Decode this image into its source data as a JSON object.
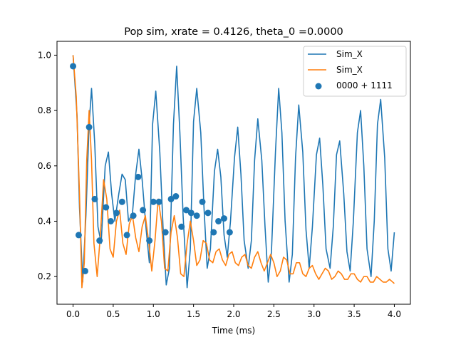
{
  "chart_data": {
    "type": "line",
    "title": "Pop sim, xrate = 0.4126, theta_0 =0.0000",
    "xlabel": "Time (ms)",
    "ylabel": "",
    "xlim": [
      -0.2,
      4.2
    ],
    "ylim": [
      0.1,
      1.05
    ],
    "xticks": [
      0.0,
      0.5,
      1.0,
      1.5,
      2.0,
      2.5,
      3.0,
      3.5,
      4.0
    ],
    "xtick_labels": [
      "0.0",
      "0.5",
      "1.0",
      "1.5",
      "2.0",
      "2.5",
      "3.0",
      "3.5",
      "4.0"
    ],
    "yticks": [
      0.2,
      0.4,
      0.6,
      0.8,
      1.0
    ],
    "ytick_labels": [
      "0.2",
      "0.4",
      "0.6",
      "0.8",
      "1.0"
    ],
    "grid": false,
    "legend_position": "top-right",
    "series": [
      {
        "name": "Sim_X",
        "type": "line",
        "color": "#1f77b4",
        "x": [
          0.0,
          0.05,
          0.08,
          0.12,
          0.16,
          0.2,
          0.23,
          0.27,
          0.31,
          0.35,
          0.4,
          0.44,
          0.48,
          0.52,
          0.57,
          0.61,
          0.65,
          0.69,
          0.74,
          0.78,
          0.82,
          0.86,
          0.91,
          0.95,
          0.99,
          1.03,
          1.08,
          1.12,
          1.16,
          1.2,
          1.25,
          1.29,
          1.33,
          1.37,
          1.42,
          1.46,
          1.5,
          1.54,
          1.59,
          1.63,
          1.67,
          1.71,
          1.76,
          1.8,
          1.84,
          1.88,
          1.92,
          1.96,
          2.01,
          2.05,
          2.09,
          2.13,
          2.18,
          2.22,
          2.26,
          2.3,
          2.35,
          2.39,
          2.43,
          2.47,
          2.52,
          2.56,
          2.6,
          2.64,
          2.69,
          2.73,
          2.77,
          2.81,
          2.86,
          2.9,
          2.94,
          2.98,
          3.03,
          3.07,
          3.11,
          3.15,
          3.2,
          3.24,
          3.28,
          3.32,
          3.37,
          3.41,
          3.45,
          3.49,
          3.54,
          3.58,
          3.62,
          3.66,
          3.71,
          3.75,
          3.79,
          3.83,
          3.88,
          3.92,
          3.96,
          4.0
        ],
        "y": [
          1.0,
          0.78,
          0.45,
          0.18,
          0.42,
          0.75,
          0.88,
          0.68,
          0.38,
          0.32,
          0.6,
          0.65,
          0.5,
          0.4,
          0.5,
          0.57,
          0.55,
          0.4,
          0.43,
          0.57,
          0.66,
          0.55,
          0.37,
          0.25,
          0.75,
          0.87,
          0.65,
          0.38,
          0.17,
          0.23,
          0.75,
          0.96,
          0.72,
          0.42,
          0.16,
          0.3,
          0.76,
          0.88,
          0.72,
          0.45,
          0.23,
          0.3,
          0.58,
          0.66,
          0.56,
          0.35,
          0.27,
          0.4,
          0.63,
          0.74,
          0.57,
          0.33,
          0.23,
          0.33,
          0.62,
          0.77,
          0.62,
          0.38,
          0.18,
          0.29,
          0.65,
          0.88,
          0.72,
          0.4,
          0.18,
          0.28,
          0.63,
          0.82,
          0.65,
          0.37,
          0.23,
          0.38,
          0.64,
          0.7,
          0.53,
          0.3,
          0.23,
          0.38,
          0.64,
          0.69,
          0.5,
          0.29,
          0.22,
          0.4,
          0.72,
          0.8,
          0.6,
          0.3,
          0.2,
          0.4,
          0.75,
          0.84,
          0.63,
          0.3,
          0.22,
          0.36
        ]
      },
      {
        "name": "Sim_X",
        "type": "line",
        "color": "#ff7f0e",
        "x": [
          0.0,
          0.04,
          0.08,
          0.11,
          0.14,
          0.17,
          0.2,
          0.23,
          0.26,
          0.3,
          0.34,
          0.38,
          0.42,
          0.46,
          0.5,
          0.54,
          0.58,
          0.62,
          0.66,
          0.7,
          0.74,
          0.78,
          0.82,
          0.86,
          0.9,
          0.94,
          0.98,
          1.02,
          1.06,
          1.1,
          1.14,
          1.18,
          1.22,
          1.26,
          1.3,
          1.34,
          1.38,
          1.42,
          1.46,
          1.5,
          1.54,
          1.58,
          1.62,
          1.66,
          1.7,
          1.74,
          1.78,
          1.82,
          1.86,
          1.9,
          1.94,
          1.98,
          2.02,
          2.06,
          2.1,
          2.14,
          2.18,
          2.22,
          2.26,
          2.3,
          2.34,
          2.38,
          2.42,
          2.46,
          2.5,
          2.54,
          2.58,
          2.62,
          2.66,
          2.7,
          2.74,
          2.78,
          2.82,
          2.86,
          2.9,
          2.94,
          2.98,
          3.02,
          3.06,
          3.1,
          3.14,
          3.18,
          3.22,
          3.26,
          3.3,
          3.34,
          3.38,
          3.42,
          3.46,
          3.5,
          3.54,
          3.58,
          3.62,
          3.66,
          3.7,
          3.74,
          3.78,
          3.82,
          3.86,
          3.9,
          3.94,
          3.98,
          4.0
        ],
        "y": [
          1.0,
          0.85,
          0.5,
          0.16,
          0.25,
          0.62,
          0.8,
          0.62,
          0.32,
          0.2,
          0.35,
          0.55,
          0.48,
          0.3,
          0.27,
          0.4,
          0.44,
          0.32,
          0.28,
          0.39,
          0.42,
          0.34,
          0.29,
          0.38,
          0.42,
          0.33,
          0.22,
          0.33,
          0.48,
          0.4,
          0.23,
          0.22,
          0.36,
          0.42,
          0.34,
          0.21,
          0.2,
          0.32,
          0.4,
          0.33,
          0.24,
          0.26,
          0.33,
          0.32,
          0.26,
          0.25,
          0.29,
          0.3,
          0.26,
          0.24,
          0.28,
          0.29,
          0.25,
          0.24,
          0.27,
          0.28,
          0.24,
          0.23,
          0.27,
          0.29,
          0.25,
          0.22,
          0.25,
          0.28,
          0.25,
          0.2,
          0.22,
          0.27,
          0.26,
          0.21,
          0.21,
          0.25,
          0.25,
          0.21,
          0.2,
          0.23,
          0.24,
          0.21,
          0.19,
          0.21,
          0.23,
          0.22,
          0.19,
          0.2,
          0.22,
          0.21,
          0.19,
          0.19,
          0.21,
          0.21,
          0.19,
          0.18,
          0.2,
          0.2,
          0.18,
          0.18,
          0.2,
          0.19,
          0.18,
          0.18,
          0.19,
          0.18,
          0.175
        ]
      },
      {
        "name": "0000 + 1111",
        "type": "scatter",
        "color": "#1f77b4",
        "x": [
          0.0,
          0.07,
          0.15,
          0.2,
          0.27,
          0.33,
          0.41,
          0.47,
          0.54,
          0.61,
          0.67,
          0.75,
          0.81,
          0.87,
          0.95,
          1.0,
          1.07,
          1.15,
          1.22,
          1.28,
          1.35,
          1.41,
          1.47,
          1.54,
          1.61,
          1.68,
          1.75,
          1.81,
          1.88,
          1.95
        ],
        "y": [
          0.96,
          0.35,
          0.22,
          0.74,
          0.48,
          0.33,
          0.45,
          0.4,
          0.43,
          0.47,
          0.35,
          0.42,
          0.56,
          0.44,
          0.33,
          0.47,
          0.47,
          0.36,
          0.48,
          0.49,
          0.38,
          0.44,
          0.43,
          0.42,
          0.47,
          0.43,
          0.36,
          0.4,
          0.41,
          0.36
        ]
      }
    ]
  }
}
